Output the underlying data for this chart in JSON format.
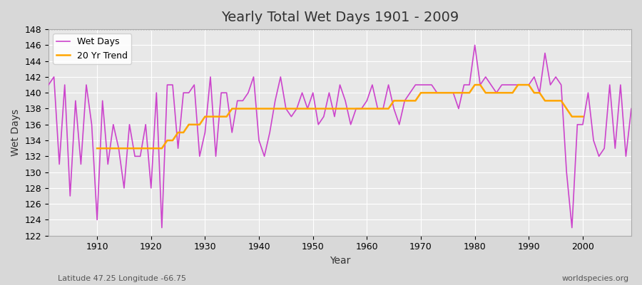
{
  "title": "Yearly Total Wet Days 1901 - 2009",
  "xlabel": "Year",
  "ylabel": "Wet Days",
  "subtitle_left": "Latitude 47.25 Longitude -66.75",
  "subtitle_right": "worldspecies.org",
  "ylim": [
    122,
    148
  ],
  "yticks": [
    122,
    124,
    126,
    128,
    130,
    132,
    134,
    136,
    138,
    140,
    142,
    144,
    146,
    148
  ],
  "xlim": [
    1901,
    2009
  ],
  "xticks": [
    1910,
    1920,
    1930,
    1940,
    1950,
    1960,
    1970,
    1980,
    1990,
    2000
  ],
  "wet_days_color": "#cc44cc",
  "trend_color": "#ffa500",
  "background_color": "#e8e8e8",
  "grid_color": "#ffffff",
  "legend_entries": [
    "Wet Days",
    "20 Yr Trend"
  ],
  "years": [
    1901,
    1902,
    1903,
    1904,
    1905,
    1906,
    1907,
    1908,
    1909,
    1910,
    1911,
    1912,
    1913,
    1914,
    1915,
    1916,
    1917,
    1918,
    1919,
    1920,
    1921,
    1922,
    1923,
    1924,
    1925,
    1926,
    1927,
    1928,
    1929,
    1930,
    1931,
    1932,
    1933,
    1934,
    1935,
    1936,
    1937,
    1938,
    1939,
    1940,
    1941,
    1942,
    1943,
    1944,
    1945,
    1946,
    1947,
    1948,
    1949,
    1950,
    1951,
    1952,
    1953,
    1954,
    1955,
    1956,
    1957,
    1958,
    1959,
    1960,
    1961,
    1962,
    1963,
    1964,
    1965,
    1966,
    1967,
    1968,
    1969,
    1970,
    1971,
    1972,
    1973,
    1974,
    1975,
    1976,
    1977,
    1978,
    1979,
    1980,
    1981,
    1982,
    1983,
    1984,
    1985,
    1986,
    1987,
    1988,
    1989,
    1990,
    1991,
    1992,
    1993,
    1994,
    1995,
    1996,
    1997,
    1998,
    1999,
    2000,
    2001,
    2002,
    2003,
    2004,
    2005,
    2006,
    2007,
    2008,
    2009
  ],
  "wet_days": [
    141,
    142,
    131,
    141,
    127,
    139,
    131,
    141,
    136,
    124,
    139,
    131,
    136,
    133,
    128,
    136,
    132,
    132,
    136,
    128,
    140,
    123,
    141,
    141,
    133,
    140,
    140,
    141,
    132,
    135,
    142,
    132,
    140,
    140,
    135,
    139,
    139,
    140,
    142,
    134,
    132,
    135,
    139,
    142,
    138,
    137,
    138,
    140,
    138,
    140,
    136,
    137,
    140,
    137,
    141,
    139,
    136,
    138,
    138,
    139,
    141,
    138,
    138,
    141,
    138,
    136,
    139,
    140,
    141,
    141,
    141,
    141,
    140,
    140,
    140,
    140,
    138,
    141,
    141,
    146,
    141,
    142,
    141,
    140,
    141,
    141,
    141,
    141,
    141,
    141,
    142,
    140,
    145,
    141,
    142,
    141,
    130,
    123,
    136,
    136,
    140,
    134,
    132,
    133,
    141,
    133,
    141,
    132,
    138
  ],
  "trend_years": [
    1910,
    1911,
    1912,
    1913,
    1914,
    1915,
    1916,
    1917,
    1918,
    1919,
    1920,
    1921,
    1922,
    1923,
    1924,
    1925,
    1926,
    1927,
    1928,
    1929,
    1930,
    1931,
    1932,
    1933,
    1934,
    1935,
    1936,
    1937,
    1938,
    1939,
    1940,
    1941,
    1942,
    1943,
    1944,
    1945,
    1946,
    1947,
    1948,
    1949,
    1950,
    1951,
    1952,
    1953,
    1954,
    1955,
    1956,
    1957,
    1958,
    1959,
    1960,
    1961,
    1962,
    1963,
    1964,
    1965,
    1966,
    1967,
    1968,
    1969,
    1970,
    1971,
    1972,
    1973,
    1974,
    1975,
    1976,
    1977,
    1978,
    1979,
    1980,
    1981,
    1982,
    1983,
    1984,
    1985,
    1986,
    1987,
    1988,
    1989,
    1990,
    1991,
    1992,
    1993,
    1994,
    1995,
    1996,
    1997,
    1998,
    1999,
    2000
  ],
  "trend_values": [
    133,
    133,
    133,
    133,
    133,
    133,
    133,
    133,
    133,
    133,
    133,
    133,
    133,
    134,
    134,
    135,
    135,
    136,
    136,
    136,
    137,
    137,
    137,
    137,
    137,
    138,
    138,
    138,
    138,
    138,
    138,
    138,
    138,
    138,
    138,
    138,
    138,
    138,
    138,
    138,
    138,
    138,
    138,
    138,
    138,
    138,
    138,
    138,
    138,
    138,
    138,
    138,
    138,
    138,
    138,
    139,
    139,
    139,
    139,
    139,
    140,
    140,
    140,
    140,
    140,
    140,
    140,
    140,
    140,
    140,
    141,
    141,
    140,
    140,
    140,
    140,
    140,
    140,
    141,
    141,
    141,
    140,
    140,
    139,
    139,
    139,
    139,
    138,
    137,
    137,
    137
  ]
}
